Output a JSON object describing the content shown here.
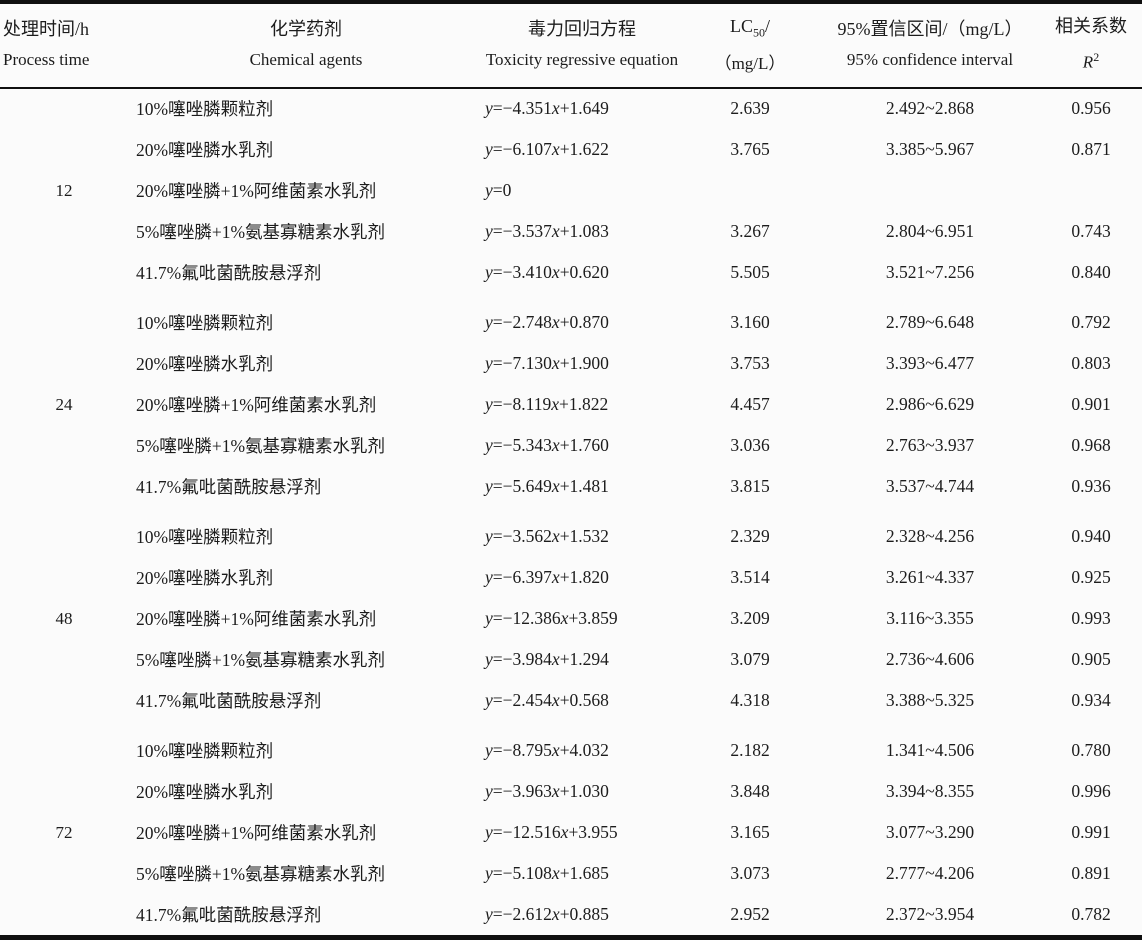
{
  "table": {
    "columns": [
      {
        "zh": "处理时间/h",
        "en": "Process time"
      },
      {
        "zh": "化学药剂",
        "en": "Chemical agents"
      },
      {
        "zh": "毒力回归方程",
        "en": "Toxicity regressive equation"
      },
      {
        "lc_prefix": "LC",
        "lc_sub": "50",
        "lc_suffix": "/",
        "en": "（mg/L）"
      },
      {
        "zh": "95%置信区间/（mg/L）",
        "en": "95% confidence interval"
      },
      {
        "zh": "相关系数",
        "r_base": "R",
        "r_sup": "2"
      }
    ],
    "groups": [
      {
        "time": "12",
        "rows": [
          {
            "chemical": "10%噻唑膦颗粒剂",
            "equation": "y=−4.351x+1.649",
            "lc50": "2.639",
            "ci": "2.492~2.868",
            "r2": "0.956"
          },
          {
            "chemical": "20%噻唑膦水乳剂",
            "equation": "y=−6.107x+1.622",
            "lc50": "3.765",
            "ci": "3.385~5.967",
            "r2": "0.871"
          },
          {
            "chemical": "20%噻唑膦+1%阿维菌素水乳剂",
            "equation": "y=0",
            "lc50": "",
            "ci": "",
            "r2": ""
          },
          {
            "chemical": "5%噻唑膦+1%氨基寡糖素水乳剂",
            "equation": "y=−3.537x+1.083",
            "lc50": "3.267",
            "ci": "2.804~6.951",
            "r2": "0.743"
          },
          {
            "chemical": "41.7%氟吡菌酰胺悬浮剂",
            "equation": "y=−3.410x+0.620",
            "lc50": "5.505",
            "ci": "3.521~7.256",
            "r2": "0.840"
          }
        ]
      },
      {
        "time": "24",
        "rows": [
          {
            "chemical": "10%噻唑膦颗粒剂",
            "equation": "y=−2.748x+0.870",
            "lc50": "3.160",
            "ci": "2.789~6.648",
            "r2": "0.792"
          },
          {
            "chemical": "20%噻唑膦水乳剂",
            "equation": "y=−7.130x+1.900",
            "lc50": "3.753",
            "ci": "3.393~6.477",
            "r2": "0.803"
          },
          {
            "chemical": "20%噻唑膦+1%阿维菌素水乳剂",
            "equation": "y=−8.119x+1.822",
            "lc50": "4.457",
            "ci": "2.986~6.629",
            "r2": "0.901"
          },
          {
            "chemical": "5%噻唑膦+1%氨基寡糖素水乳剂",
            "equation": "y=−5.343x+1.760",
            "lc50": "3.036",
            "ci": "2.763~3.937",
            "r2": "0.968"
          },
          {
            "chemical": "41.7%氟吡菌酰胺悬浮剂",
            "equation": "y=−5.649x+1.481",
            "lc50": "3.815",
            "ci": "3.537~4.744",
            "r2": "0.936"
          }
        ]
      },
      {
        "time": "48",
        "rows": [
          {
            "chemical": "10%噻唑膦颗粒剂",
            "equation": "y=−3.562x+1.532",
            "lc50": "2.329",
            "ci": "2.328~4.256",
            "r2": "0.940"
          },
          {
            "chemical": "20%噻唑膦水乳剂",
            "equation": "y=−6.397x+1.820",
            "lc50": "3.514",
            "ci": "3.261~4.337",
            "r2": "0.925"
          },
          {
            "chemical": "20%噻唑膦+1%阿维菌素水乳剂",
            "equation": "y=−12.386x+3.859",
            "lc50": "3.209",
            "ci": "3.116~3.355",
            "r2": "0.993"
          },
          {
            "chemical": "5%噻唑膦+1%氨基寡糖素水乳剂",
            "equation": "y=−3.984x+1.294",
            "lc50": "3.079",
            "ci": "2.736~4.606",
            "r2": "0.905"
          },
          {
            "chemical": "41.7%氟吡菌酰胺悬浮剂",
            "equation": "y=−2.454x+0.568",
            "lc50": "4.318",
            "ci": "3.388~5.325",
            "r2": "0.934"
          }
        ]
      },
      {
        "time": "72",
        "rows": [
          {
            "chemical": "10%噻唑膦颗粒剂",
            "equation": "y=−8.795x+4.032",
            "lc50": "2.182",
            "ci": "1.341~4.506",
            "r2": "0.780"
          },
          {
            "chemical": "20%噻唑膦水乳剂",
            "equation": "y=−3.963x+1.030",
            "lc50": "3.848",
            "ci": "3.394~8.355",
            "r2": "0.996"
          },
          {
            "chemical": "20%噻唑膦+1%阿维菌素水乳剂",
            "equation": "y=−12.516x+3.955",
            "lc50": "3.165",
            "ci": "3.077~3.290",
            "r2": "0.991"
          },
          {
            "chemical": "5%噻唑膦+1%氨基寡糖素水乳剂",
            "equation": "y=−5.108x+1.685",
            "lc50": "3.073",
            "ci": "2.777~4.206",
            "r2": "0.891"
          },
          {
            "chemical": "41.7%氟吡菌酰胺悬浮剂",
            "equation": "y=−2.612x+0.885",
            "lc50": "2.952",
            "ci": "2.372~3.954",
            "r2": "0.782"
          }
        ]
      }
    ]
  }
}
